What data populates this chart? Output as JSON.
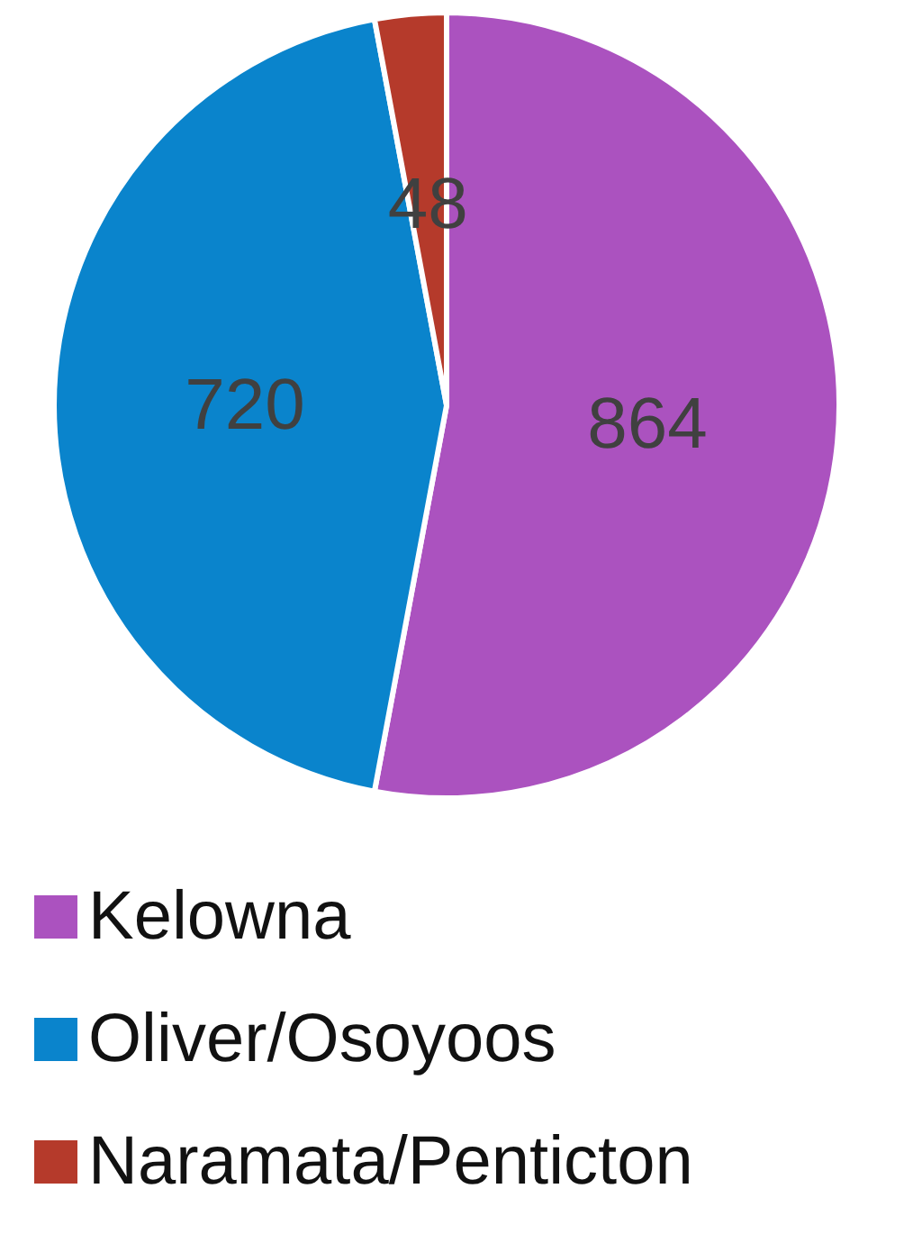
{
  "chart_data": {
    "type": "pie",
    "categories": [
      "Kelowna",
      "Oliver/Osoyoos",
      "Naramata/Penticton"
    ],
    "values": [
      864,
      720,
      48
    ],
    "colors": [
      "#ab52bf",
      "#0a84cc",
      "#b53a2b"
    ],
    "data_labels": true,
    "legend": "bottom"
  }
}
